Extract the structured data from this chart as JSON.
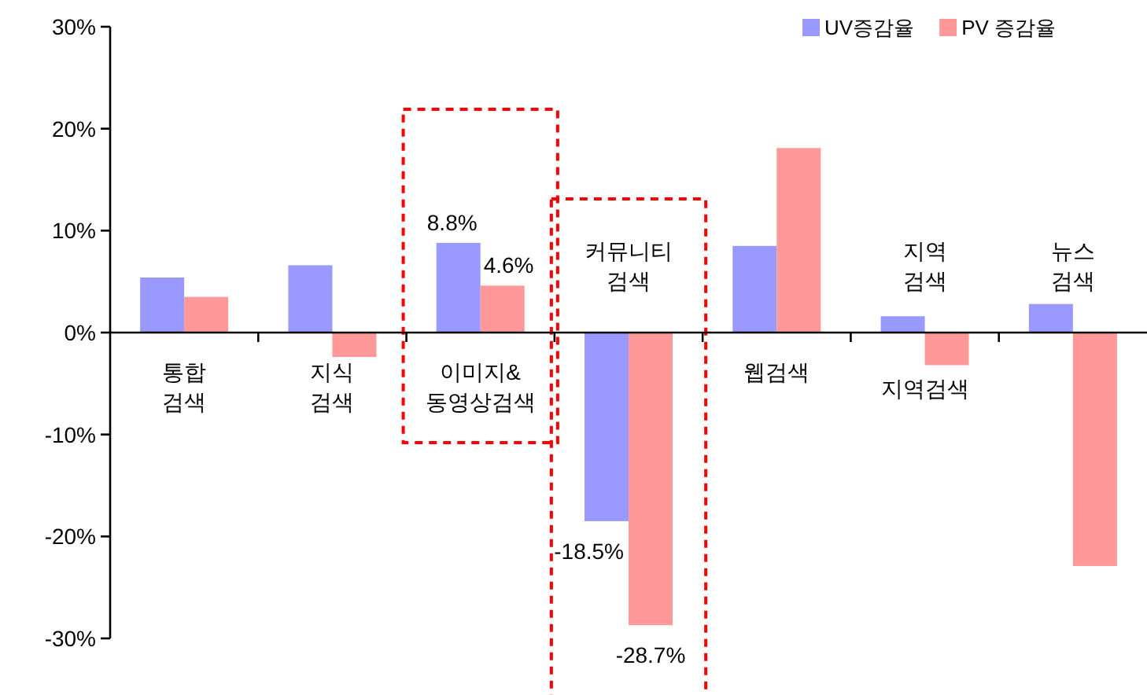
{
  "chart_data": {
    "type": "bar",
    "categories": [
      "통합 검색",
      "지식 검색",
      "이미지& 동영상검색",
      "커뮤니티 검색",
      "웹검색",
      "지역 검색",
      "뉴스 검색"
    ],
    "series": [
      {
        "name": "UV증감율",
        "color": "#9999ff",
        "values": [
          5.4,
          6.6,
          8.8,
          -18.5,
          8.5,
          1.6,
          2.8
        ],
        "value_labels": [
          null,
          null,
          "8.8%",
          "-18.5%",
          null,
          null,
          null
        ]
      },
      {
        "name": "PV 증감율",
        "color": "#ff9999",
        "values": [
          3.5,
          -2.4,
          4.6,
          -28.7,
          18.1,
          -3.2,
          -22.9
        ],
        "value_labels": [
          null,
          null,
          "4.6%",
          "-28.7%",
          null,
          null,
          null
        ]
      }
    ],
    "ylim": [
      -30,
      30
    ],
    "yticks": [
      {
        "value": -30,
        "label": "-30%"
      },
      {
        "value": -20,
        "label": "-20%"
      },
      {
        "value": -10,
        "label": "-10%"
      },
      {
        "value": 0,
        "label": "0%"
      },
      {
        "value": 10,
        "label": "10%"
      },
      {
        "value": 20,
        "label": "20%"
      },
      {
        "value": 30,
        "label": "30%"
      }
    ],
    "annotations": [
      {
        "text": "지역검색",
        "x": "지역 검색",
        "y": -3.2
      }
    ],
    "grid": false,
    "legend": "top right"
  }
}
